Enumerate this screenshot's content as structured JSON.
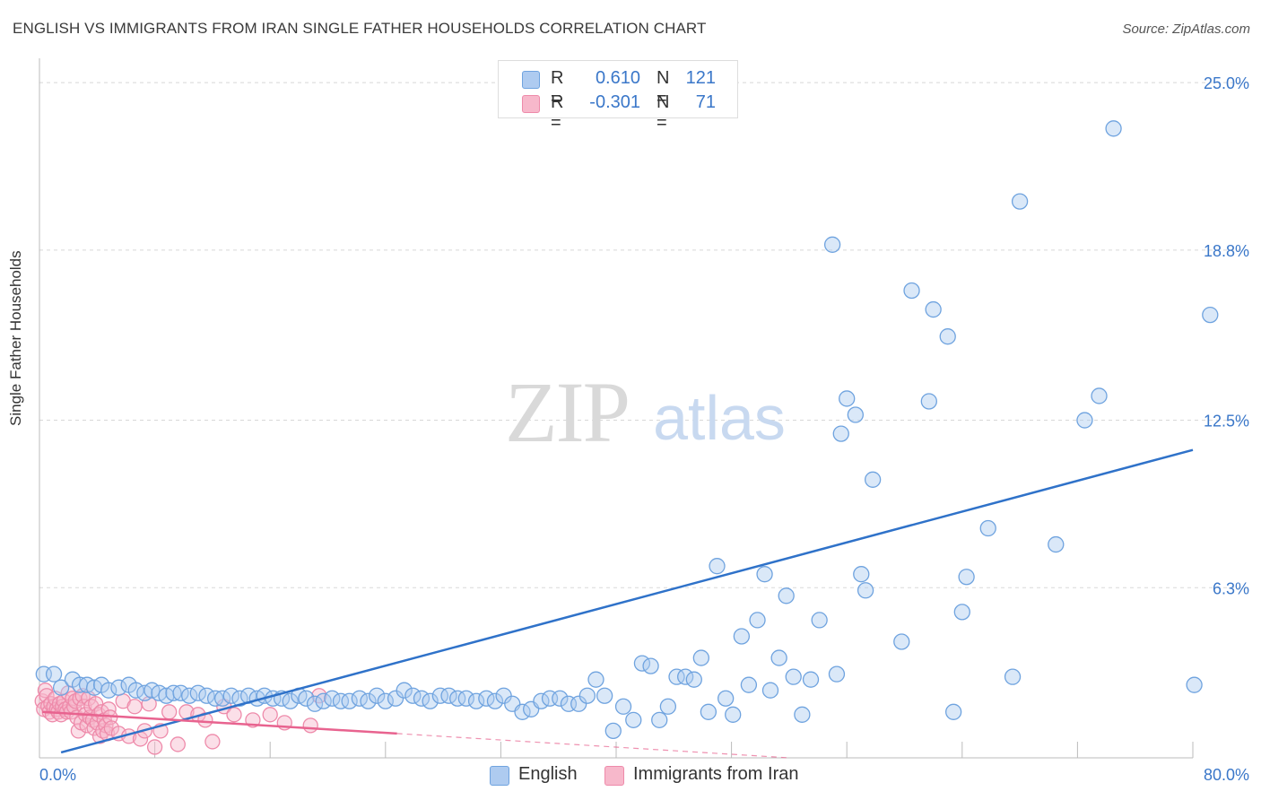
{
  "title": "ENGLISH VS IMMIGRANTS FROM IRAN SINGLE FATHER HOUSEHOLDS CORRELATION CHART",
  "source": "Source: ZipAtlas.com",
  "watermark": {
    "zip": "ZIP",
    "atlas": "atlas"
  },
  "legend": {
    "english": {
      "r_label": "R =",
      "r_value": "0.610",
      "n_label": "N =",
      "n_value": "121",
      "swatch_color": "#aecbf0"
    },
    "iran": {
      "r_label": "R =",
      "r_value": "-0.301",
      "n_label": "N =",
      "n_value": "71",
      "swatch_color": "#f7b8cb"
    }
  },
  "bottom_legend": {
    "english": "English",
    "iran": "Immigrants from Iran"
  },
  "colors": {
    "english": "#6fa3df",
    "english_fill": "rgba(174,203,240,0.45)",
    "english_line": "#2f72c9",
    "iran": "#ee8aaa",
    "iran_fill": "rgba(247,184,203,0.45)",
    "iran_line": "#e8638f",
    "axis_text": "#3a77c9",
    "grid": "#d8d8d8"
  },
  "chart_data": {
    "type": "scatter",
    "title": "ENGLISH VS IMMIGRANTS FROM IRAN SINGLE FATHER HOUSEHOLDS CORRELATION CHART",
    "xlabel": "",
    "ylabel": "Single Father Households",
    "xlim": [
      0,
      80
    ],
    "ylim": [
      0,
      25.9
    ],
    "x_tick_labels": [
      "0.0%",
      "80.0%"
    ],
    "y_ticks": [
      6.3,
      12.5,
      18.8,
      25.0
    ],
    "y_tick_labels": [
      "6.3%",
      "12.5%",
      "18.8%",
      "25.0%"
    ],
    "grid": true,
    "legend_position": "top-center",
    "series": [
      {
        "name": "English",
        "trendline": {
          "x": [
            1.5,
            80
          ],
          "y": [
            0.2,
            11.4
          ]
        },
        "points": [
          [
            0.3,
            3.1
          ],
          [
            1.0,
            3.1
          ],
          [
            1.5,
            2.6
          ],
          [
            2.3,
            2.9
          ],
          [
            2.8,
            2.7
          ],
          [
            3.3,
            2.7
          ],
          [
            3.8,
            2.6
          ],
          [
            4.3,
            2.7
          ],
          [
            4.8,
            2.5
          ],
          [
            5.5,
            2.6
          ],
          [
            6.2,
            2.7
          ],
          [
            6.7,
            2.5
          ],
          [
            7.3,
            2.4
          ],
          [
            7.8,
            2.5
          ],
          [
            8.3,
            2.4
          ],
          [
            8.8,
            2.3
          ],
          [
            9.3,
            2.4
          ],
          [
            9.8,
            2.4
          ],
          [
            10.4,
            2.3
          ],
          [
            11.0,
            2.4
          ],
          [
            11.6,
            2.3
          ],
          [
            12.2,
            2.2
          ],
          [
            12.7,
            2.2
          ],
          [
            13.3,
            2.3
          ],
          [
            13.9,
            2.2
          ],
          [
            14.5,
            2.3
          ],
          [
            15.1,
            2.2
          ],
          [
            15.6,
            2.3
          ],
          [
            16.2,
            2.2
          ],
          [
            16.8,
            2.2
          ],
          [
            17.4,
            2.1
          ],
          [
            18.0,
            2.3
          ],
          [
            18.5,
            2.2
          ],
          [
            19.1,
            2.0
          ],
          [
            19.7,
            2.1
          ],
          [
            20.3,
            2.2
          ],
          [
            20.9,
            2.1
          ],
          [
            21.5,
            2.1
          ],
          [
            22.2,
            2.2
          ],
          [
            22.8,
            2.1
          ],
          [
            23.4,
            2.3
          ],
          [
            24.0,
            2.1
          ],
          [
            24.7,
            2.2
          ],
          [
            25.3,
            2.5
          ],
          [
            25.9,
            2.3
          ],
          [
            26.5,
            2.2
          ],
          [
            27.1,
            2.1
          ],
          [
            27.8,
            2.3
          ],
          [
            28.4,
            2.3
          ],
          [
            29.0,
            2.2
          ],
          [
            29.6,
            2.2
          ],
          [
            30.3,
            2.1
          ],
          [
            31.0,
            2.2
          ],
          [
            31.6,
            2.1
          ],
          [
            32.2,
            2.3
          ],
          [
            32.8,
            2.0
          ],
          [
            33.5,
            1.7
          ],
          [
            34.1,
            1.8
          ],
          [
            34.8,
            2.1
          ],
          [
            35.4,
            2.2
          ],
          [
            36.1,
            2.2
          ],
          [
            36.7,
            2.0
          ],
          [
            37.4,
            2.0
          ],
          [
            38.0,
            2.3
          ],
          [
            38.6,
            2.9
          ],
          [
            39.2,
            2.3
          ],
          [
            39.8,
            1.0
          ],
          [
            40.5,
            1.9
          ],
          [
            41.2,
            1.4
          ],
          [
            41.8,
            3.5
          ],
          [
            42.4,
            3.4
          ],
          [
            43.0,
            1.4
          ],
          [
            43.6,
            1.9
          ],
          [
            44.2,
            3.0
          ],
          [
            44.8,
            3.0
          ],
          [
            45.4,
            2.9
          ],
          [
            45.9,
            3.7
          ],
          [
            46.4,
            1.7
          ],
          [
            47.0,
            7.1
          ],
          [
            47.6,
            2.2
          ],
          [
            48.1,
            1.6
          ],
          [
            48.7,
            4.5
          ],
          [
            49.2,
            2.7
          ],
          [
            49.8,
            5.1
          ],
          [
            50.3,
            6.8
          ],
          [
            50.7,
            2.5
          ],
          [
            51.3,
            3.7
          ],
          [
            51.8,
            6.0
          ],
          [
            52.3,
            3.0
          ],
          [
            52.9,
            1.6
          ],
          [
            53.5,
            2.9
          ],
          [
            54.1,
            5.1
          ],
          [
            55.0,
            19.0
          ],
          [
            55.3,
            3.1
          ],
          [
            55.6,
            12.0
          ],
          [
            56.0,
            13.3
          ],
          [
            56.6,
            12.7
          ],
          [
            57.0,
            6.8
          ],
          [
            57.3,
            6.2
          ],
          [
            57.8,
            10.3
          ],
          [
            59.8,
            4.3
          ],
          [
            60.5,
            17.3
          ],
          [
            61.7,
            13.2
          ],
          [
            62.0,
            16.6
          ],
          [
            63.0,
            15.6
          ],
          [
            63.4,
            1.7
          ],
          [
            64.0,
            5.4
          ],
          [
            64.3,
            6.7
          ],
          [
            65.8,
            8.5
          ],
          [
            67.5,
            3.0
          ],
          [
            68.0,
            20.6
          ],
          [
            70.5,
            7.9
          ],
          [
            72.5,
            12.5
          ],
          [
            73.5,
            13.4
          ],
          [
            80.1,
            2.7
          ],
          [
            81.2,
            16.4
          ],
          [
            74.5,
            23.3
          ]
        ]
      },
      {
        "name": "Immigrants from Iran",
        "trendline": {
          "x": [
            0.2,
            24.8
          ],
          "y": [
            1.7,
            0.9
          ]
        },
        "trendline_extension": {
          "x": [
            24.8,
            52.0
          ],
          "y": [
            0.9,
            0.0
          ]
        },
        "points": [
          [
            0.2,
            2.1
          ],
          [
            0.3,
            1.8
          ],
          [
            0.4,
            2.5
          ],
          [
            0.5,
            2.3
          ],
          [
            0.6,
            1.9
          ],
          [
            0.7,
            1.7
          ],
          [
            0.8,
            2.0
          ],
          [
            0.9,
            1.6
          ],
          [
            1.0,
            1.9
          ],
          [
            1.1,
            2.2
          ],
          [
            1.2,
            1.8
          ],
          [
            1.3,
            1.7
          ],
          [
            1.4,
            2.0
          ],
          [
            1.5,
            1.6
          ],
          [
            1.6,
            1.9
          ],
          [
            1.7,
            2.1
          ],
          [
            1.8,
            1.8
          ],
          [
            1.9,
            1.7
          ],
          [
            2.0,
            2.4
          ],
          [
            2.1,
            1.9
          ],
          [
            2.2,
            1.7
          ],
          [
            2.3,
            2.2
          ],
          [
            2.4,
            1.9
          ],
          [
            2.5,
            2.1
          ],
          [
            2.6,
            1.5
          ],
          [
            2.7,
            1.0
          ],
          [
            2.8,
            2.2
          ],
          [
            2.9,
            1.3
          ],
          [
            3.0,
            2.3
          ],
          [
            3.1,
            1.9
          ],
          [
            3.2,
            1.6
          ],
          [
            3.3,
            1.2
          ],
          [
            3.4,
            2.2
          ],
          [
            3.5,
            1.5
          ],
          [
            3.6,
            1.9
          ],
          [
            3.7,
            1.4
          ],
          [
            3.8,
            1.1
          ],
          [
            3.9,
            2.0
          ],
          [
            4.0,
            1.3
          ],
          [
            4.1,
            1.6
          ],
          [
            4.2,
            0.8
          ],
          [
            4.3,
            1.7
          ],
          [
            4.4,
            1.0
          ],
          [
            4.5,
            1.4
          ],
          [
            4.6,
            1.2
          ],
          [
            4.7,
            0.9
          ],
          [
            4.8,
            1.8
          ],
          [
            4.9,
            1.5
          ],
          [
            5.0,
            1.1
          ],
          [
            5.5,
            0.9
          ],
          [
            5.8,
            2.1
          ],
          [
            6.2,
            0.8
          ],
          [
            6.6,
            1.9
          ],
          [
            7.0,
            0.7
          ],
          [
            7.3,
            1.0
          ],
          [
            7.6,
            2.0
          ],
          [
            8.0,
            0.4
          ],
          [
            8.4,
            1.0
          ],
          [
            9.0,
            1.7
          ],
          [
            9.6,
            0.5
          ],
          [
            10.2,
            1.7
          ],
          [
            11.0,
            1.6
          ],
          [
            11.5,
            1.4
          ],
          [
            12.0,
            0.6
          ],
          [
            12.8,
            1.9
          ],
          [
            13.5,
            1.6
          ],
          [
            14.8,
            1.4
          ],
          [
            16.0,
            1.6
          ],
          [
            17.0,
            1.3
          ],
          [
            18.8,
            1.2
          ],
          [
            19.4,
            2.3
          ]
        ]
      }
    ]
  }
}
